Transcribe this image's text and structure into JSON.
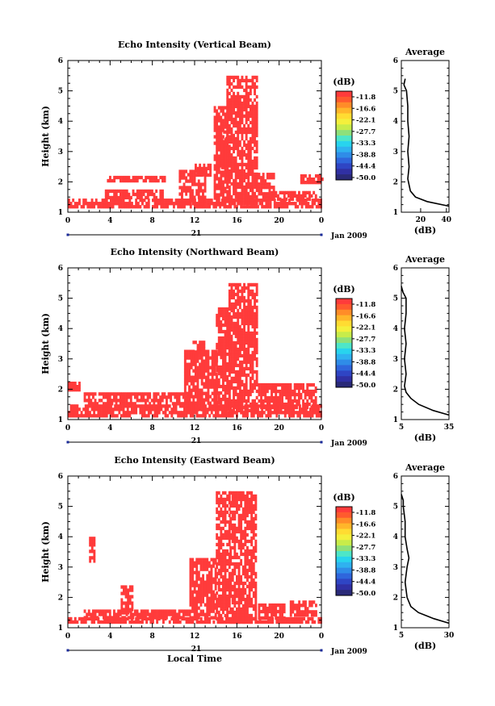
{
  "chart_data": [
    {
      "type": "heatmap",
      "title": "Echo Intensity (Vertical Beam)",
      "xlabel": "",
      "ylabel": "Height (km)",
      "x_ticks": [
        "0",
        "4",
        "8",
        "12",
        "16",
        "20",
        "0"
      ],
      "y_ticks": [
        "1",
        "2",
        "3",
        "4",
        "5",
        "6"
      ],
      "xlim": [
        0,
        24
      ],
      "ylim": [
        1,
        6
      ],
      "date_axis": {
        "day": "21",
        "month_year": "Jan 2009"
      },
      "colorbar": {
        "label": "(dB)",
        "ticks": [
          "-11.8",
          "-16.6",
          "-22.1",
          "-27.7",
          "-33.3",
          "-38.8",
          "-44.4",
          "-50.0"
        ],
        "colors": [
          "#ff3b3b",
          "#ff5a2e",
          "#ff8c28",
          "#ffb62a",
          "#ffdc32",
          "#f4f03c",
          "#c8ec4a",
          "#8ee07a",
          "#4ee6c8",
          "#28d4ee",
          "#2fb2f0",
          "#2f8ce8",
          "#2f66dc",
          "#2f45c4",
          "#3030a4",
          "#2a2a78"
        ]
      },
      "echo_regions": [
        {
          "t": [
            0.0,
            24.0
          ],
          "h": [
            1.2,
            1.45
          ]
        },
        {
          "t": [
            3.5,
            9.0
          ],
          "h": [
            1.45,
            1.75
          ]
        },
        {
          "t": [
            3.7,
            9.2
          ],
          "h": [
            2.05,
            2.2
          ]
        },
        {
          "t": [
            10.5,
            13.0
          ],
          "h": [
            1.3,
            2.4
          ]
        },
        {
          "t": [
            12.0,
            13.5
          ],
          "h": [
            2.2,
            2.6
          ]
        },
        {
          "t": [
            13.8,
            15.2
          ],
          "h": [
            1.3,
            4.5
          ]
        },
        {
          "t": [
            14.5,
            15.0
          ],
          "h": [
            2.5,
            3.7
          ]
        },
        {
          "t": [
            15.0,
            17.8
          ],
          "h": [
            1.3,
            5.5
          ]
        },
        {
          "t": [
            18.0,
            19.5
          ],
          "h": [
            1.5,
            2.3
          ]
        },
        {
          "t": [
            19.0,
            23.5
          ],
          "h": [
            1.4,
            1.7
          ]
        },
        {
          "t": [
            22.0,
            24.0
          ],
          "h": [
            2.0,
            2.25
          ]
        }
      ],
      "average_profile": {
        "title": "Average",
        "xlabel": "(dB)",
        "x_ticks": [
          "20",
          "40"
        ],
        "xlim": [
          5,
          42
        ],
        "height": [
          1.2,
          1.35,
          1.5,
          1.7,
          1.9,
          2.1,
          2.5,
          3.0,
          3.5,
          4.0,
          4.5,
          5.0,
          5.2,
          5.4
        ],
        "value": [
          42,
          25,
          16,
          12,
          11,
          10,
          11,
          10,
          11,
          10,
          10,
          9,
          7,
          8
        ]
      }
    },
    {
      "type": "heatmap",
      "title": "Echo Intensity (Northward Beam)",
      "xlabel": "",
      "ylabel": "Height (km)",
      "x_ticks": [
        "0",
        "4",
        "8",
        "12",
        "16",
        "20",
        "0"
      ],
      "y_ticks": [
        "1",
        "2",
        "3",
        "4",
        "5",
        "6"
      ],
      "xlim": [
        0,
        24
      ],
      "ylim": [
        1,
        6
      ],
      "date_axis": {
        "day": "21",
        "month_year": "Jan 2009"
      },
      "colorbar": {
        "label": "(dB)",
        "ticks": [
          "-11.8",
          "-16.6",
          "-22.1",
          "-27.7",
          "-33.3",
          "-38.8",
          "-44.4",
          "-50.0"
        ],
        "colors": [
          "#ff3b3b",
          "#ff5a2e",
          "#ff8c28",
          "#ffb62a",
          "#ffdc32",
          "#f4f03c",
          "#c8ec4a",
          "#8ee07a",
          "#4ee6c8",
          "#28d4ee",
          "#2fb2f0",
          "#2f8ce8",
          "#2f66dc",
          "#2f45c4",
          "#3030a4",
          "#2a2a78"
        ]
      },
      "echo_regions": [
        {
          "t": [
            0.0,
            24.0
          ],
          "h": [
            1.15,
            1.5
          ]
        },
        {
          "t": [
            1.5,
            11.5
          ],
          "h": [
            1.5,
            1.9
          ]
        },
        {
          "t": [
            0.0,
            1.0
          ],
          "h": [
            2.0,
            2.25
          ]
        },
        {
          "t": [
            11.0,
            14.0
          ],
          "h": [
            1.3,
            3.3
          ]
        },
        {
          "t": [
            11.8,
            12.8
          ],
          "h": [
            3.2,
            3.6
          ]
        },
        {
          "t": [
            14.0,
            15.2
          ],
          "h": [
            1.3,
            4.7
          ]
        },
        {
          "t": [
            15.2,
            17.8
          ],
          "h": [
            1.3,
            5.5
          ]
        },
        {
          "t": [
            18.0,
            23.5
          ],
          "h": [
            1.4,
            2.2
          ]
        }
      ],
      "average_profile": {
        "title": "Average",
        "xlabel": "(dB)",
        "x_ticks": [
          "5",
          "35"
        ],
        "xlim": [
          5,
          35
        ],
        "height": [
          1.15,
          1.3,
          1.5,
          1.7,
          1.9,
          2.1,
          2.5,
          3.0,
          3.5,
          4.0,
          4.5,
          5.0,
          5.2,
          5.4
        ],
        "value": [
          35,
          25,
          16,
          11,
          8,
          7,
          8,
          7,
          8,
          7,
          8,
          8,
          6,
          5
        ]
      }
    },
    {
      "type": "heatmap",
      "title": "Echo Intensity (Eastward Beam)",
      "xlabel": "Local Time",
      "ylabel": "Height (km)",
      "x_ticks": [
        "0",
        "4",
        "8",
        "12",
        "16",
        "20",
        "0"
      ],
      "y_ticks": [
        "1",
        "2",
        "3",
        "4",
        "5",
        "6"
      ],
      "xlim": [
        0,
        24
      ],
      "ylim": [
        1,
        6
      ],
      "date_axis": {
        "day": "21",
        "month_year": "Jan 2009"
      },
      "colorbar": {
        "label": "(dB)",
        "ticks": [
          "-11.8",
          "-16.6",
          "-22.1",
          "-27.7",
          "-33.3",
          "-38.8",
          "-44.4",
          "-50.0"
        ],
        "colors": [
          "#ff3b3b",
          "#ff5a2e",
          "#ff8c28",
          "#ffb62a",
          "#ffdc32",
          "#f4f03c",
          "#c8ec4a",
          "#8ee07a",
          "#4ee6c8",
          "#28d4ee",
          "#2fb2f0",
          "#2f8ce8",
          "#2f66dc",
          "#2f45c4",
          "#3030a4",
          "#2a2a78"
        ]
      },
      "echo_regions": [
        {
          "t": [
            0.0,
            24.0
          ],
          "h": [
            1.15,
            1.35
          ]
        },
        {
          "t": [
            1.5,
            11.5
          ],
          "h": [
            1.35,
            1.6
          ]
        },
        {
          "t": [
            2.0,
            2.5
          ],
          "h": [
            3.2,
            4.0
          ]
        },
        {
          "t": [
            5.0,
            6.0
          ],
          "h": [
            1.5,
            2.4
          ]
        },
        {
          "t": [
            11.5,
            14.0
          ],
          "h": [
            1.3,
            3.3
          ]
        },
        {
          "t": [
            14.0,
            15.2
          ],
          "h": [
            1.3,
            5.5
          ]
        },
        {
          "t": [
            15.3,
            17.8
          ],
          "h": [
            1.2,
            5.5
          ]
        },
        {
          "t": [
            18.0,
            20.5
          ],
          "h": [
            1.3,
            1.8
          ]
        },
        {
          "t": [
            21.0,
            23.5
          ],
          "h": [
            1.4,
            1.9
          ]
        }
      ],
      "average_profile": {
        "title": "Average",
        "xlabel": "(dB)",
        "x_ticks": [
          "5",
          "30"
        ],
        "xlim": [
          5,
          30
        ],
        "height": [
          1.15,
          1.3,
          1.5,
          1.7,
          2.0,
          2.5,
          3.0,
          3.3,
          3.6,
          4.0,
          4.5,
          5.0,
          5.2,
          5.4
        ],
        "value": [
          30,
          22,
          14,
          10,
          8,
          7,
          8,
          9,
          8,
          7,
          7,
          6,
          6,
          5
        ]
      }
    }
  ]
}
